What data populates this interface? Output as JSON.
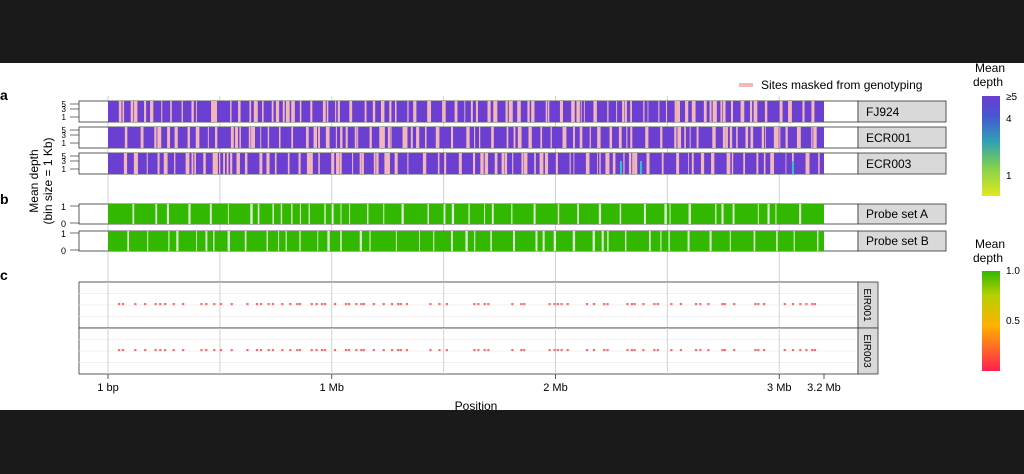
{
  "chart_data": {
    "type": "heatmap",
    "xlabel": "Position",
    "ylabel": "Mean depth",
    "ylabel_sub": "(bin size = 1 Kb)",
    "x_ticks": [
      {
        "value": 1,
        "label": "1 bp"
      },
      {
        "value": 1000000,
        "label": "1 Mb"
      },
      {
        "value": 2000000,
        "label": "2 Mb"
      },
      {
        "value": 3000000,
        "label": "3 Mb"
      },
      {
        "value": 3200000,
        "label": "3.2 Mb"
      }
    ],
    "xlim": [
      1,
      3200000
    ],
    "grid": true,
    "panel_labels": [
      "a",
      "b",
      "c"
    ],
    "legend_masked": "Sites masked from genotyping",
    "colors": {
      "masked": "#f2b8b8",
      "depth_high": "#6a3fd1",
      "probe": "#33b800",
      "point": "#ff6b6b"
    },
    "panel_a": {
      "y_ticks": [
        "5",
        "3",
        "1"
      ],
      "rows": [
        {
          "label": "FJ924"
        },
        {
          "label": "ECR001"
        },
        {
          "label": "ECR003"
        }
      ]
    },
    "panel_b": {
      "y_ticks": [
        "1",
        "0"
      ],
      "rows": [
        {
          "label": "Probe set A"
        },
        {
          "label": "Probe set B"
        }
      ]
    },
    "panel_c": {
      "rows": [
        {
          "label": "EIR001"
        },
        {
          "label": "EIR003"
        }
      ]
    },
    "colorbar_a": {
      "title_line1": "Mean",
      "title_line2": "depth",
      "ticks": [
        "≥5",
        "4",
        "1"
      ]
    },
    "colorbar_b": {
      "title_line1": "Mean",
      "title_line2": "depth",
      "ticks": [
        "1.0",
        "0.5"
      ]
    }
  }
}
